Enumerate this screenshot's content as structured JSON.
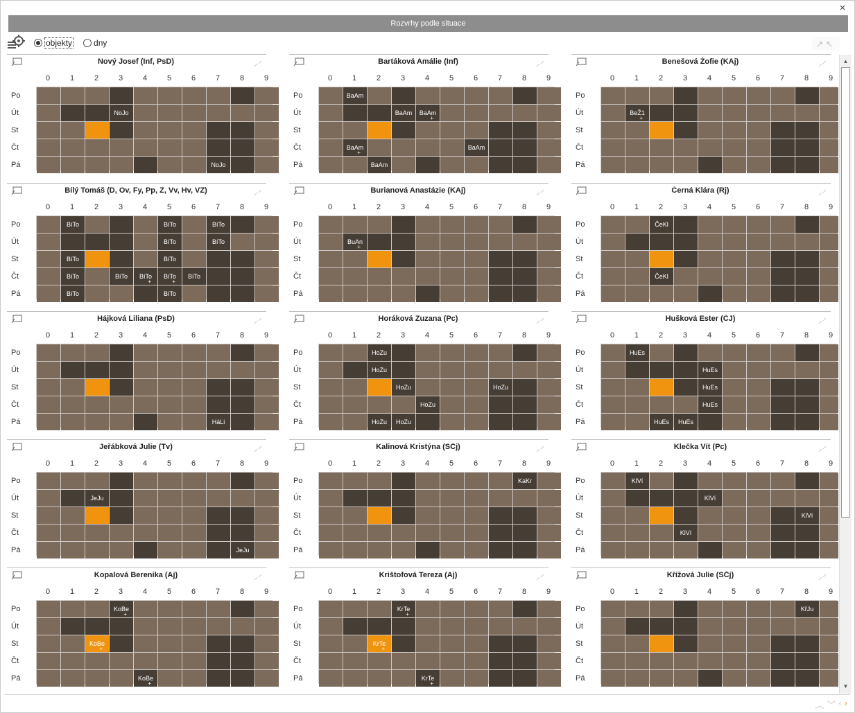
{
  "window": {
    "title": "Rozvrhy podle situace",
    "close_glyph": "×"
  },
  "toolbar": {
    "settings_icon": "gear-grid-icon",
    "radio_objects_label": "objekty",
    "radio_days_label": "dny",
    "selected": "objekty"
  },
  "colors": {
    "cell": "#7c6a5a",
    "dark": "#463d35",
    "highlight": "#f0930f",
    "grid_line": "#cfcac6"
  },
  "grid": {
    "hours": [
      "0",
      "1",
      "2",
      "3",
      "4",
      "5",
      "6",
      "7",
      "8",
      "9"
    ],
    "days": [
      "Po",
      "Út",
      "St",
      "Čt",
      "Pá"
    ],
    "base_dark_cells": [
      [
        0,
        3
      ],
      [
        0,
        8
      ],
      [
        1,
        1
      ],
      [
        1,
        2
      ],
      [
        1,
        3
      ],
      [
        2,
        3
      ],
      [
        2,
        7
      ],
      [
        2,
        8
      ],
      [
        3,
        7
      ],
      [
        3,
        8
      ],
      [
        4,
        4
      ],
      [
        4,
        7
      ],
      [
        4,
        8
      ]
    ],
    "orange_cell": [
      2,
      2
    ]
  },
  "panels": [
    {
      "title": "Nový Josef (Inf, PsD)",
      "entries": [
        {
          "day": 1,
          "hour": 3,
          "text": "NoJo"
        },
        {
          "day": 4,
          "hour": 7,
          "text": "NoJo"
        }
      ]
    },
    {
      "title": "Bartáková Amálie (Inf)",
      "entries": [
        {
          "day": 0,
          "hour": 1,
          "text": "BaAm"
        },
        {
          "day": 1,
          "hour": 3,
          "text": "BaAm"
        },
        {
          "day": 1,
          "hour": 4,
          "text": "BaAm",
          "plus": true
        },
        {
          "day": 3,
          "hour": 1,
          "text": "BaAm",
          "plus": true
        },
        {
          "day": 3,
          "hour": 6,
          "text": "BaAm"
        },
        {
          "day": 4,
          "hour": 2,
          "text": "BaAm"
        }
      ]
    },
    {
      "title": "Benešová Žofie (KAj)",
      "entries": [
        {
          "day": 1,
          "hour": 1,
          "text": "BeŽ1",
          "plus": true
        }
      ]
    },
    {
      "title": "Bílý Tomáš (D, Ov, Fy, Pp, Z, Vv, Hv, VZ)",
      "entries": [
        {
          "day": 0,
          "hour": 1,
          "text": "BíTo"
        },
        {
          "day": 0,
          "hour": 5,
          "text": "BíTo"
        },
        {
          "day": 0,
          "hour": 7,
          "text": "BíTo"
        },
        {
          "day": 1,
          "hour": 5,
          "text": "BíTo"
        },
        {
          "day": 1,
          "hour": 7,
          "text": "BíTo"
        },
        {
          "day": 2,
          "hour": 1,
          "text": "BíTo"
        },
        {
          "day": 2,
          "hour": 5,
          "text": "BíTo"
        },
        {
          "day": 3,
          "hour": 1,
          "text": "BíTo"
        },
        {
          "day": 3,
          "hour": 3,
          "text": "BíTo"
        },
        {
          "day": 3,
          "hour": 4,
          "text": "BíTo",
          "plus": true
        },
        {
          "day": 3,
          "hour": 5,
          "text": "BíTo",
          "plus": true
        },
        {
          "day": 3,
          "hour": 6,
          "text": "BíTo"
        },
        {
          "day": 4,
          "hour": 1,
          "text": "BíTo"
        },
        {
          "day": 4,
          "hour": 5,
          "text": "BíTo"
        }
      ]
    },
    {
      "title": "Burianová Anastázie (KAj)",
      "entries": [
        {
          "day": 1,
          "hour": 1,
          "text": "BuAn",
          "plus": true
        }
      ]
    },
    {
      "title": "Černá Klára (Rj)",
      "entries": [
        {
          "day": 0,
          "hour": 2,
          "text": "ČeKl"
        },
        {
          "day": 3,
          "hour": 2,
          "text": "ČeKl"
        }
      ]
    },
    {
      "title": "Hájková Liliana (PsD)",
      "entries": [
        {
          "day": 4,
          "hour": 7,
          "text": "HáLi"
        }
      ]
    },
    {
      "title": "Horáková Zuzana (Pc)",
      "entries": [
        {
          "day": 0,
          "hour": 2,
          "text": "HoZu"
        },
        {
          "day": 1,
          "hour": 2,
          "text": "HoZu"
        },
        {
          "day": 2,
          "hour": 3,
          "text": "HoZu"
        },
        {
          "day": 2,
          "hour": 7,
          "text": "HoZu"
        },
        {
          "day": 3,
          "hour": 4,
          "text": "HoZu"
        },
        {
          "day": 4,
          "hour": 2,
          "text": "HoZu"
        },
        {
          "day": 4,
          "hour": 3,
          "text": "HoZu"
        }
      ]
    },
    {
      "title": "Hušková Ester (ČJ)",
      "entries": [
        {
          "day": 0,
          "hour": 1,
          "text": "HuEs"
        },
        {
          "day": 1,
          "hour": 4,
          "text": "HuEs"
        },
        {
          "day": 2,
          "hour": 4,
          "text": "HuEs"
        },
        {
          "day": 3,
          "hour": 4,
          "text": "HuEs"
        },
        {
          "day": 4,
          "hour": 2,
          "text": "HuEs"
        },
        {
          "day": 4,
          "hour": 3,
          "text": "HuEs"
        }
      ]
    },
    {
      "title": "Jeřábková Julie (Tv)",
      "entries": [
        {
          "day": 1,
          "hour": 2,
          "text": "JeJu"
        },
        {
          "day": 4,
          "hour": 8,
          "text": "JeJu"
        }
      ]
    },
    {
      "title": "Kalinová Kristýna (SČj)",
      "entries": [
        {
          "day": 0,
          "hour": 8,
          "text": "KaKr"
        }
      ]
    },
    {
      "title": "Klečka Vít (Pc)",
      "entries": [
        {
          "day": 0,
          "hour": 1,
          "text": "KlVí"
        },
        {
          "day": 1,
          "hour": 4,
          "text": "KlVí"
        },
        {
          "day": 2,
          "hour": 8,
          "text": "KlVí"
        },
        {
          "day": 3,
          "hour": 3,
          "text": "KlVí"
        }
      ]
    },
    {
      "title": "Kopalová Berenika (Aj)",
      "entries": [
        {
          "day": 0,
          "hour": 3,
          "text": "KoBe",
          "plus": true
        },
        {
          "day": 2,
          "hour": 2,
          "text": "KoBe",
          "plus": true
        },
        {
          "day": 4,
          "hour": 4,
          "text": "KoBe",
          "plus": true
        }
      ]
    },
    {
      "title": "Krištofová Tereza (Aj)",
      "entries": [
        {
          "day": 0,
          "hour": 3,
          "text": "KrTe",
          "plus": true
        },
        {
          "day": 2,
          "hour": 2,
          "text": "KrTe",
          "plus": true
        },
        {
          "day": 4,
          "hour": 4,
          "text": "KrTe",
          "plus": true
        }
      ]
    },
    {
      "title": "Křížová Julie (SČj)",
      "entries": [
        {
          "day": 0,
          "hour": 8,
          "text": "KřJu"
        }
      ]
    }
  ],
  "footer": {
    "nav_icons": [
      "chevron-up-icon",
      "chevron-down-icon",
      "chevron-left-icon",
      "chevron-right-icon"
    ]
  }
}
